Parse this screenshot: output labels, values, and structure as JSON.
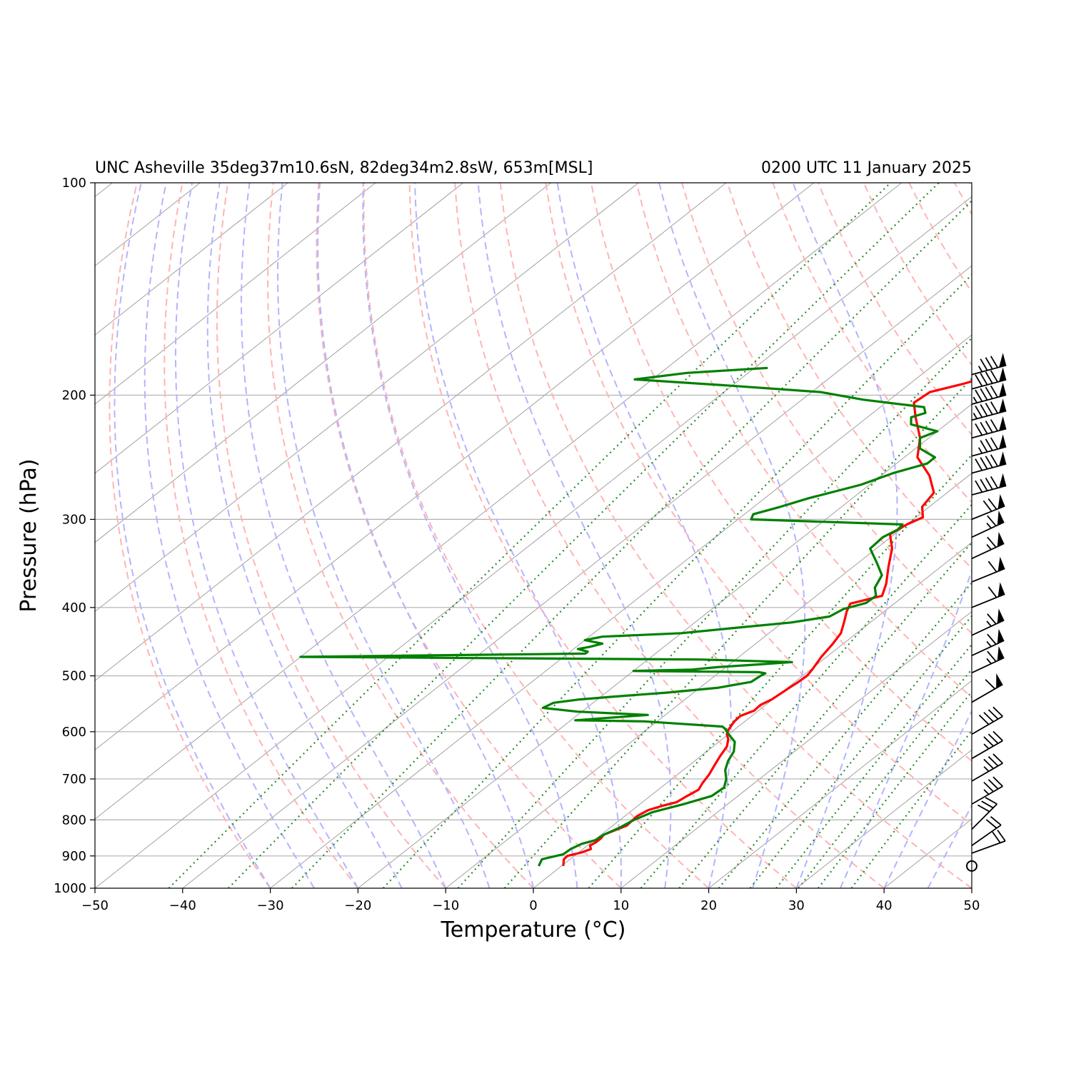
{
  "chart_data": {
    "type": "line",
    "title_left": "UNC Asheville 35deg37m10.6sN, 82deg34m2.8sW, 653m[MSL]",
    "title_right": "0200 UTC 11 January 2025",
    "xlabel": "Temperature (°C)",
    "ylabel": "Pressure (hPa)",
    "xlim": [
      -50,
      50
    ],
    "ylim": [
      1000,
      100
    ],
    "y_scale": "log",
    "skew": true,
    "grid": true,
    "x_ticks": [
      -50,
      -40,
      -30,
      -20,
      -10,
      0,
      10,
      20,
      30,
      40,
      50
    ],
    "x_tick_labels": [
      "−50",
      "−40",
      "−30",
      "−20",
      "−10",
      "0",
      "10",
      "20",
      "30",
      "40",
      "50"
    ],
    "y_ticks": [
      1000,
      900,
      800,
      700,
      600,
      500,
      400,
      300,
      200,
      100
    ],
    "y_tick_labels": [
      "1000",
      "900",
      "800",
      "700",
      "600",
      "500",
      "400",
      "300",
      "200",
      "100"
    ],
    "colors": {
      "temperature": "#ff0000",
      "dewpoint": "#008000",
      "isotherm_grid": "#a0a0a0",
      "dry_adiabat": "#ffb4b4",
      "moist_adiabat": "#b4b4ff",
      "mixing_ratio": "#2a8a2a",
      "barb": "#000000"
    },
    "series": [
      {
        "key": "temperature",
        "points": [
          [
            930,
            0.2
          ],
          [
            910,
            -0.7
          ],
          [
            900,
            -0.8
          ],
          [
            890,
            0.3
          ],
          [
            880,
            0.9
          ],
          [
            870,
            0.3
          ],
          [
            860,
            0.5
          ],
          [
            850,
            0.5
          ],
          [
            840,
            0.3
          ],
          [
            830,
            0.8
          ],
          [
            815,
            1.6
          ],
          [
            790,
            1.4
          ],
          [
            775,
            1.8
          ],
          [
            765,
            2.7
          ],
          [
            755,
            3.9
          ],
          [
            740,
            4.2
          ],
          [
            725,
            4.6
          ],
          [
            710,
            4.1
          ],
          [
            690,
            3.6
          ],
          [
            670,
            2.9
          ],
          [
            650,
            2.2
          ],
          [
            630,
            1.6
          ],
          [
            615,
            0.7
          ],
          [
            605,
            -0.2
          ],
          [
            595,
            -0.7
          ],
          [
            580,
            -1.2
          ],
          [
            570,
            -1.3
          ],
          [
            560,
            -0.5
          ],
          [
            550,
            -0.6
          ],
          [
            540,
            -0.1
          ],
          [
            520,
            0.2
          ],
          [
            510,
            0.4
          ],
          [
            500,
            0.5
          ],
          [
            490,
            0.2
          ],
          [
            470,
            -0.6
          ],
          [
            450,
            -1.2
          ],
          [
            435,
            -1.8
          ],
          [
            420,
            -3.0
          ],
          [
            405,
            -4.3
          ],
          [
            395,
            -5.0
          ],
          [
            385,
            -2.5
          ],
          [
            370,
            -3.8
          ],
          [
            350,
            -6.0
          ],
          [
            330,
            -8.2
          ],
          [
            315,
            -10.5
          ],
          [
            305,
            -10.0
          ],
          [
            298,
            -9.2
          ],
          [
            288,
            -10.8
          ],
          [
            275,
            -11.5
          ],
          [
            260,
            -14.5
          ],
          [
            245,
            -18.5
          ],
          [
            230,
            -21.0
          ],
          [
            215,
            -24.5
          ],
          [
            205,
            -26.8
          ],
          [
            198,
            -26.5
          ],
          [
            193,
            -24.0
          ],
          [
            188,
            -22.0
          ],
          [
            183,
            -23.0
          ],
          [
            178,
            -23.0
          ]
        ]
      },
      {
        "key": "dewpoint",
        "points": [
          [
            930,
            -2.6
          ],
          [
            910,
            -3.2
          ],
          [
            895,
            -1.5
          ],
          [
            880,
            -1.4
          ],
          [
            865,
            -0.9
          ],
          [
            855,
            0.1
          ],
          [
            840,
            0.3
          ],
          [
            820,
            1.1
          ],
          [
            800,
            1.6
          ],
          [
            780,
            2.6
          ],
          [
            760,
            5.0
          ],
          [
            740,
            7.0
          ],
          [
            720,
            7.2
          ],
          [
            700,
            6.2
          ],
          [
            680,
            4.8
          ],
          [
            660,
            3.8
          ],
          [
            640,
            3.1
          ],
          [
            620,
            1.8
          ],
          [
            605,
            0.0
          ],
          [
            595,
            -1.1
          ],
          [
            590,
            -1.8
          ],
          [
            580,
            -11.5
          ],
          [
            578,
            -19.5
          ],
          [
            568,
            -12.0
          ],
          [
            562,
            -20.5
          ],
          [
            555,
            -25.0
          ],
          [
            546,
            -24.5
          ],
          [
            540,
            -22.0
          ],
          [
            535,
            -18.5
          ],
          [
            528,
            -13.0
          ],
          [
            520,
            -8.0
          ],
          [
            510,
            -5.0
          ],
          [
            500,
            -4.8
          ],
          [
            496,
            -4.6
          ],
          [
            494,
            -5.5
          ],
          [
            492,
            -20.0
          ],
          [
            490,
            -13.5
          ],
          [
            486,
            -11.0
          ],
          [
            482,
            -7.0
          ],
          [
            478,
            -3.2
          ],
          [
            474,
            -14.0
          ],
          [
            470,
            -60.0
          ],
          [
            465,
            -28.0
          ],
          [
            462,
            -28.0
          ],
          [
            458,
            -29.5
          ],
          [
            455,
            -28.5
          ],
          [
            450,
            -27.5
          ],
          [
            445,
            -30.0
          ],
          [
            440,
            -28.5
          ],
          [
            435,
            -20.0
          ],
          [
            428,
            -15.0
          ],
          [
            420,
            -9.0
          ],
          [
            412,
            -5.5
          ],
          [
            402,
            -5.0
          ],
          [
            394,
            -3.3
          ],
          [
            385,
            -3.2
          ],
          [
            375,
            -4.5
          ],
          [
            360,
            -5.5
          ],
          [
            345,
            -8.0
          ],
          [
            330,
            -10.7
          ],
          [
            318,
            -10.9
          ],
          [
            310,
            -10.3
          ],
          [
            305,
            -10.5
          ],
          [
            300,
            -28.5
          ],
          [
            295,
            -29.0
          ],
          [
            288,
            -27.0
          ],
          [
            280,
            -25.0
          ],
          [
            268,
            -21.0
          ],
          [
            258,
            -19.0
          ],
          [
            250,
            -16.5
          ],
          [
            245,
            -16.5
          ],
          [
            238,
            -19.5
          ],
          [
            230,
            -21.0
          ],
          [
            225,
            -20.0
          ],
          [
            220,
            -24.0
          ],
          [
            215,
            -25.0
          ],
          [
            212,
            -24.0
          ],
          [
            208,
            -25.0
          ],
          [
            203,
            -33.0
          ],
          [
            198,
            -39.0
          ],
          [
            194,
            -50.0
          ],
          [
            190,
            -62.0
          ],
          [
            186,
            -57.0
          ],
          [
            183,
            -48.5
          ]
        ]
      }
    ],
    "wind_barbs": [
      {
        "p": 930,
        "calm": true
      },
      {
        "p": 892,
        "speed_kt": 20,
        "dir": 250
      },
      {
        "p": 870,
        "speed_kt": 20,
        "dir": 235
      },
      {
        "p": 825,
        "speed_kt": 30,
        "dir": 225
      },
      {
        "p": 760,
        "speed_kt": 35,
        "dir": 240
      },
      {
        "p": 705,
        "speed_kt": 35,
        "dir": 240
      },
      {
        "p": 655,
        "speed_kt": 35,
        "dir": 240
      },
      {
        "p": 605,
        "speed_kt": 40,
        "dir": 240
      },
      {
        "p": 545,
        "speed_kt": 60,
        "dir": 240
      },
      {
        "p": 495,
        "speed_kt": 65,
        "dir": 245
      },
      {
        "p": 468,
        "speed_kt": 65,
        "dir": 245
      },
      {
        "p": 438,
        "speed_kt": 65,
        "dir": 245
      },
      {
        "p": 400,
        "speed_kt": 60,
        "dir": 248
      },
      {
        "p": 368,
        "speed_kt": 60,
        "dir": 248
      },
      {
        "p": 341,
        "speed_kt": 65,
        "dir": 245
      },
      {
        "p": 318,
        "speed_kt": 65,
        "dir": 245
      },
      {
        "p": 300,
        "speed_kt": 70,
        "dir": 248
      },
      {
        "p": 277,
        "speed_kt": 90,
        "dir": 255
      },
      {
        "p": 258,
        "speed_kt": 90,
        "dir": 255
      },
      {
        "p": 244,
        "speed_kt": 85,
        "dir": 255
      },
      {
        "p": 230,
        "speed_kt": 90,
        "dir": 255
      },
      {
        "p": 217,
        "speed_kt": 95,
        "dir": 255
      },
      {
        "p": 206,
        "speed_kt": 95,
        "dir": 255
      },
      {
        "p": 196,
        "speed_kt": 90,
        "dir": 255
      },
      {
        "p": 187,
        "speed_kt": 85,
        "dir": 255
      }
    ]
  }
}
